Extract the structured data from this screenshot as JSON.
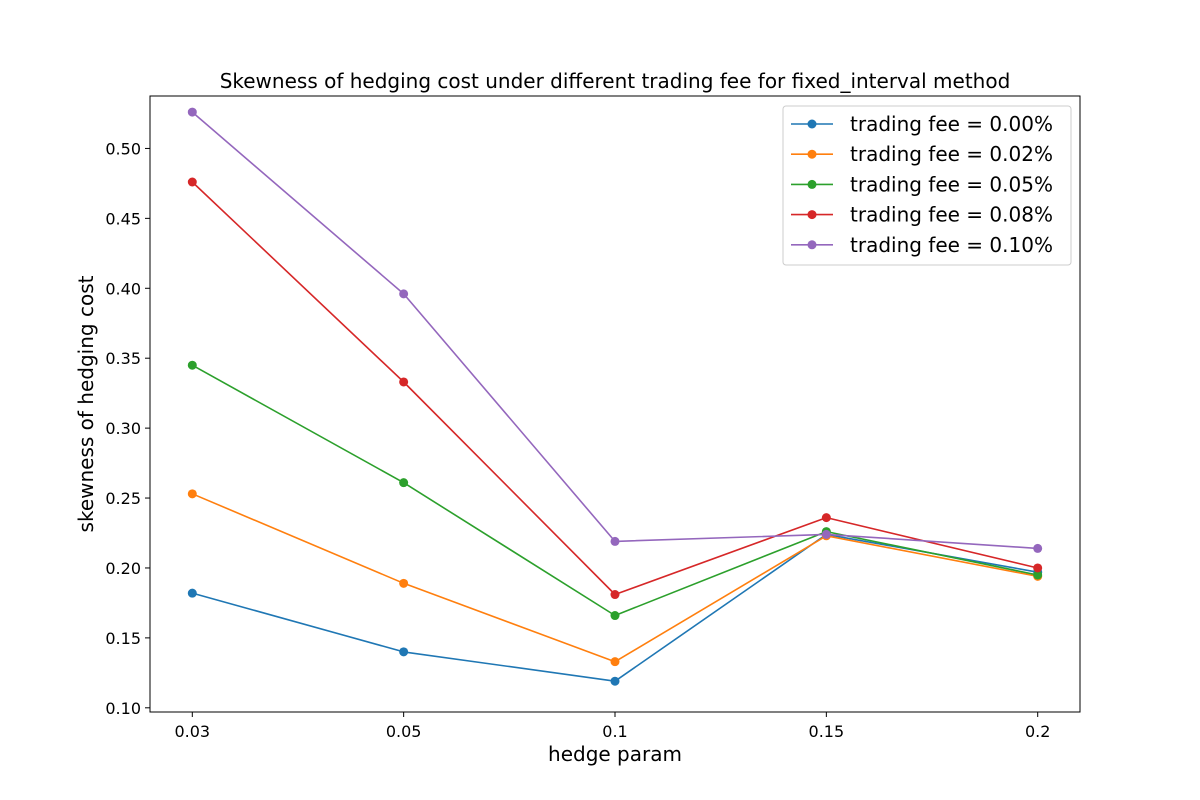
{
  "chart_data": {
    "type": "line",
    "title": "Skewness of hedging cost under different trading fee for fixed_interval method",
    "xlabel": "hedge param",
    "ylabel": "skewness of hedging cost",
    "categories": [
      "0.03",
      "0.05",
      "0.1",
      "0.15",
      "0.2"
    ],
    "ylim": [
      0.097,
      0.5375
    ],
    "yticks": [
      "0.10",
      "0.15",
      "0.20",
      "0.25",
      "0.30",
      "0.35",
      "0.40",
      "0.45",
      "0.50"
    ],
    "grid": false,
    "legend_position": "top-right",
    "series": [
      {
        "name": "trading fee = 0.00%",
        "color": "#1f77b4",
        "values": [
          0.182,
          0.14,
          0.119,
          0.224,
          0.197
        ]
      },
      {
        "name": "trading fee = 0.02%",
        "color": "#ff7f0e",
        "values": [
          0.253,
          0.189,
          0.133,
          0.223,
          0.194
        ]
      },
      {
        "name": "trading fee = 0.05%",
        "color": "#2ca02c",
        "values": [
          0.345,
          0.261,
          0.166,
          0.226,
          0.195
        ]
      },
      {
        "name": "trading fee = 0.08%",
        "color": "#d62728",
        "values": [
          0.476,
          0.333,
          0.181,
          0.236,
          0.2
        ]
      },
      {
        "name": "trading fee = 0.10%",
        "color": "#9467bd",
        "values": [
          0.526,
          0.396,
          0.219,
          0.224,
          0.214
        ]
      }
    ]
  }
}
